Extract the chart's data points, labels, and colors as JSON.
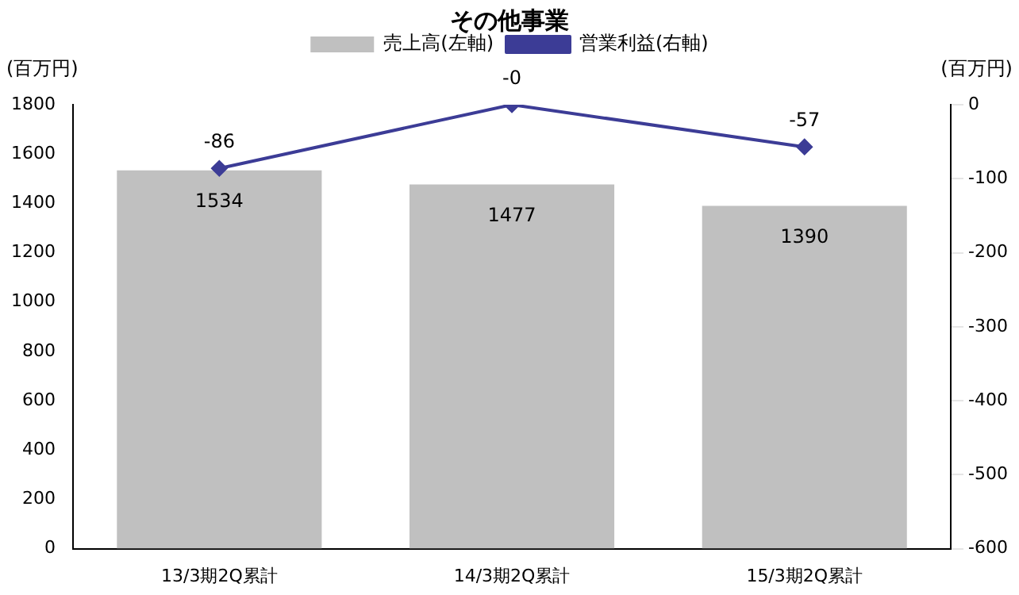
{
  "chart_data": {
    "type": "bar",
    "title": "その他事業",
    "ylabel": "(百万円)",
    "y2label": "(百万円)",
    "categories": [
      "13/3期2Q累計",
      "14/3期2Q累計",
      "15/3期2Q累計"
    ],
    "series": [
      {
        "name": "売上高(左軸)",
        "color": "#c0c0c0",
        "values": [
          1534,
          1477,
          1390
        ],
        "value_labels": [
          "1534",
          "1477",
          "1390"
        ]
      },
      {
        "name": "営業利益(右軸)",
        "type": "line",
        "axis": "y2",
        "color": "#3c3c96",
        "values": [
          -86,
          0,
          -57
        ],
        "value_labels": [
          "-86",
          "-0",
          "-57"
        ]
      }
    ],
    "ylim": [
      0,
      1800
    ],
    "yticks": [
      0,
      200,
      400,
      600,
      800,
      1000,
      1200,
      1400,
      1600,
      1800
    ],
    "y2lim": [
      -600,
      0
    ],
    "y2ticks": [
      -600,
      -500,
      -400,
      -300,
      -200,
      -100,
      0
    ],
    "grid": false,
    "legend": "top",
    "marker": "diamond",
    "line_style": "solid"
  }
}
